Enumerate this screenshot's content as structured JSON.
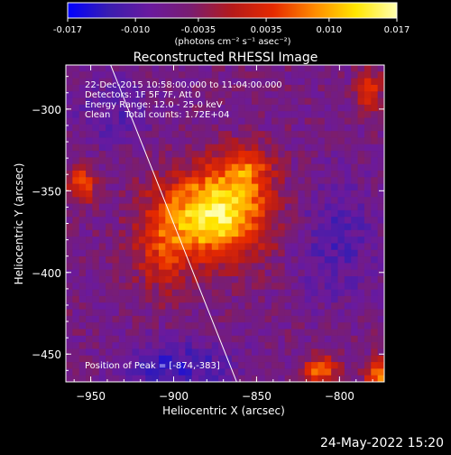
{
  "colorbar": {
    "tick_labels": [
      "-0.017",
      "-0.010",
      "-0.0035",
      "0.0035",
      "0.010",
      "0.017"
    ],
    "tick_values": [
      -0.017,
      -0.01,
      -0.0035,
      0.0035,
      0.01,
      0.017
    ],
    "range": [
      -0.017,
      0.017
    ],
    "units_label": "(photons cm⁻² s⁻¹ asec⁻²)"
  },
  "title": "Reconstructed RHESSI Image",
  "info": {
    "line1": "22-Dec-2015 10:58:00.000 to 11:04:00.000",
    "line2": "Detectors: 1F 5F 7F, Att 0",
    "line3": "Energy Range: 12.0 - 25.0 keV",
    "line4": "Clean     Total counts: 1.72E+04"
  },
  "peak_label": "Position of Peak = [-874,-383]",
  "axes": {
    "xlabel": "Heliocentric X (arcsec)",
    "ylabel": "Heliocentric Y (arcsec)",
    "xlim": [
      -965,
      -773
    ],
    "ylim": [
      -467,
      -273
    ],
    "x_ticks": [
      {
        "label": "−950",
        "value": -950
      },
      {
        "label": "−900",
        "value": -900
      },
      {
        "label": "−850",
        "value": -850
      },
      {
        "label": "−800",
        "value": -800
      }
    ],
    "y_ticks": [
      {
        "label": "−300",
        "value": -300
      },
      {
        "label": "−350",
        "value": -350
      },
      {
        "label": "−400",
        "value": -400
      },
      {
        "label": "−450",
        "value": -450
      }
    ]
  },
  "limb_line": {
    "points": [
      [
        -938,
        -273
      ],
      [
        -862,
        -467
      ]
    ]
  },
  "image_grid": {
    "nx": 48,
    "ny": 48
  },
  "colors": {
    "colormap": [
      "#0000ff",
      "#3a1db0",
      "#6a1a9e",
      "#7a1d70",
      "#b51a1a",
      "#e62a00",
      "#ff8a00",
      "#ffe600",
      "#ffffb0"
    ],
    "background": "#000000",
    "axis": "#ffffff"
  },
  "timestamp": "24-May-2022 15:20"
}
